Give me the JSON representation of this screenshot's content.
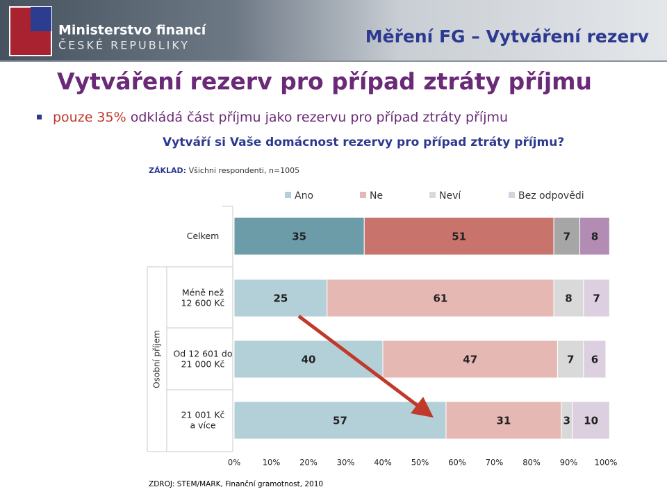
{
  "header": {
    "logo_line1": "Ministerstvo financí",
    "logo_line2": "ČESKÉ REPUBLIKY",
    "section": "Měření FG – Vytváření rezerv"
  },
  "slide_title": "Vytváření rezerv pro případ ztráty příjmu",
  "bullet": {
    "highlight": "pouze 35%",
    "text": "odkládá část příjmu jako rezervu pro případ ztráty příjmu"
  },
  "base": {
    "label": "ZÁKLAD:",
    "text": "Všichni respondenti, n=1005"
  },
  "source": "ZDROJ: STEM/MARK, Finanční gramotnost, 2010",
  "chart_data": {
    "type": "stacked_bar_h",
    "title": "Vytváří si Vaše domácnost rezervy pro případ ztráty příjmu?",
    "y_group_label": "Osobní příjem",
    "categories": [
      "Celkem",
      "Méně než\n12 600 Kč",
      "Od 12 601 do\n21 000 Kč",
      "21 001 Kč\na více"
    ],
    "series": [
      {
        "name": "Ano",
        "color": "#b3d0d8",
        "colors": [
          "#6b9ca8",
          "#b3d0d8",
          "#b3d0d8",
          "#b3d0d8"
        ],
        "values": [
          35,
          25,
          40,
          57
        ]
      },
      {
        "name": "Ne",
        "color": "#e6b8b3",
        "colors": [
          "#c8736c",
          "#e6b8b3",
          "#e6b8b3",
          "#e6b8b3"
        ],
        "values": [
          51,
          61,
          47,
          31
        ]
      },
      {
        "name": "Neví",
        "color": "#d9d9d9",
        "colors": [
          "#a6a6a6",
          "#d9d9d9",
          "#d9d9d9",
          "#d9d9d9"
        ],
        "values": [
          7,
          8,
          7,
          3
        ]
      },
      {
        "name": "Bez odpovědi",
        "color": "#dccfe0",
        "colors": [
          "#b38cb4",
          "#dccfe0",
          "#dccfe0",
          "#dccfe0"
        ],
        "values": [
          8,
          7,
          6,
          10
        ]
      }
    ],
    "xlim": [
      0,
      100
    ],
    "xticks": [
      {
        "value": 0,
        "label": "0%"
      },
      {
        "value": 10,
        "label": "10%"
      },
      {
        "value": 20,
        "label": "20%"
      },
      {
        "value": 30,
        "label": "30%"
      },
      {
        "value": 40,
        "label": "40%"
      },
      {
        "value": 50,
        "label": "50%"
      },
      {
        "value": 60,
        "label": "60%"
      },
      {
        "value": 70,
        "label": "70%"
      },
      {
        "value": 80,
        "label": "80%"
      },
      {
        "value": 90,
        "label": "90%"
      },
      {
        "value": 100,
        "label": "100%"
      }
    ],
    "legend": "top"
  }
}
